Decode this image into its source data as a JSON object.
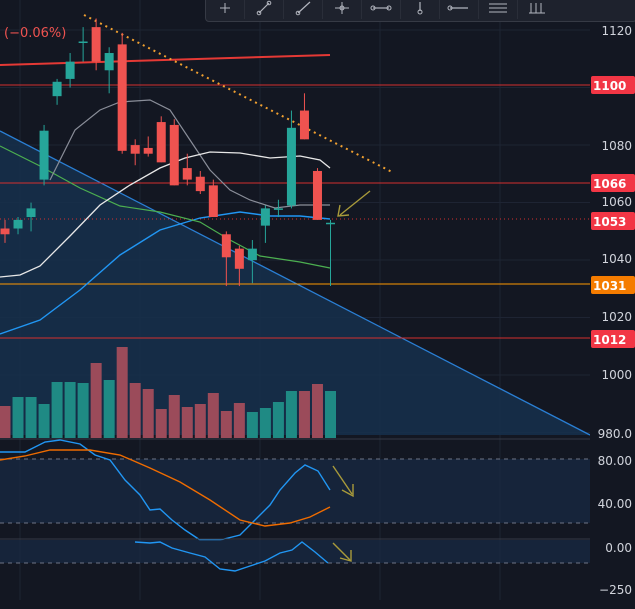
{
  "change_text": "(−0.06%)",
  "toolbar": {
    "tools": [
      "cursor-cross-icon",
      "trend-line-icon",
      "ray-icon",
      "fib-tool-icon",
      "path-icon",
      "brush-icon",
      "horizontal-line-icon",
      "text-icon",
      "pattern-icon"
    ]
  },
  "price_axis": {
    "labels": [
      "1120",
      "1080",
      "1060",
      "1040",
      "1020",
      "1000",
      "980.0"
    ],
    "badges": [
      {
        "text": "1100",
        "bg": "#f23645",
        "fg": "#ffffff"
      },
      {
        "text": "1066",
        "bg": "#f23645",
        "fg": "#ffffff"
      },
      {
        "text": "1053",
        "bg": "#f23645",
        "fg": "#ffffff"
      },
      {
        "text": "1031",
        "bg": "#f57c00",
        "fg": "#ffffff"
      },
      {
        "text": "1012",
        "bg": "#f23645",
        "fg": "#ffffff"
      }
    ]
  },
  "oscillator1": {
    "labels": [
      "80.00",
      "40.00"
    ],
    "levels": [
      80,
      20
    ]
  },
  "oscillator2": {
    "labels": [
      "0.00",
      "−250"
    ]
  },
  "colors": {
    "up": "#26a69a",
    "down": "#ef5350",
    "vol_up": "#1f8a84",
    "vol_down": "#9b4b5a",
    "bg": "#131722",
    "grid": "#1e2433",
    "resistance": "#d32f2f",
    "support_orange": "#ff9800",
    "ma_blue": "#2196f3",
    "ma_white": "#e8e8e8",
    "ma_gray": "#8a8e99",
    "ma_green": "#4caf50",
    "trend_blue": "#2a7fd4",
    "dotted_orange": "#f0a030",
    "arrow_olive": "#a89a3a",
    "osc_blue": "#2196f3",
    "osc_orange": "#ef6c00"
  },
  "chart_data": {
    "type": "candlestick",
    "ylim": [
      978,
      1123
    ],
    "candles": [
      {
        "o": 1051,
        "h": 1054,
        "l": 1046,
        "c": 1049
      },
      {
        "o": 1051,
        "h": 1055,
        "l": 1049,
        "c": 1054
      },
      {
        "o": 1055,
        "h": 1060,
        "l": 1050,
        "c": 1058
      },
      {
        "o": 1068,
        "h": 1087,
        "l": 1066,
        "c": 1085
      },
      {
        "o": 1097,
        "h": 1103,
        "l": 1094,
        "c": 1102
      },
      {
        "o": 1103,
        "h": 1112,
        "l": 1100,
        "c": 1109
      },
      {
        "o": 1116,
        "h": 1121,
        "l": 1109,
        "c": 1116
      },
      {
        "o": 1121,
        "h": 1124,
        "l": 1106,
        "c": 1109
      },
      {
        "o": 1106,
        "h": 1114,
        "l": 1098,
        "c": 1112
      },
      {
        "o": 1115,
        "h": 1119,
        "l": 1077,
        "c": 1078
      },
      {
        "o": 1080,
        "h": 1082,
        "l": 1073,
        "c": 1077
      },
      {
        "o": 1079,
        "h": 1083,
        "l": 1076,
        "c": 1077
      },
      {
        "o": 1088,
        "h": 1090,
        "l": 1074,
        "c": 1074
      },
      {
        "o": 1087,
        "h": 1089,
        "l": 1066,
        "c": 1066
      },
      {
        "o": 1072,
        "h": 1077,
        "l": 1066,
        "c": 1068
      },
      {
        "o": 1069,
        "h": 1071,
        "l": 1063,
        "c": 1064
      },
      {
        "o": 1066,
        "h": 1068,
        "l": 1055,
        "c": 1055
      },
      {
        "o": 1049,
        "h": 1050,
        "l": 1031,
        "c": 1041
      },
      {
        "o": 1044,
        "h": 1045,
        "l": 1031,
        "c": 1037
      },
      {
        "o": 1040,
        "h": 1047,
        "l": 1032,
        "c": 1044
      },
      {
        "o": 1052,
        "h": 1059,
        "l": 1046,
        "c": 1058
      },
      {
        "o": 1058,
        "h": 1061,
        "l": 1055,
        "c": 1058
      },
      {
        "o": 1059,
        "h": 1092,
        "l": 1058,
        "c": 1086
      },
      {
        "o": 1092,
        "h": 1098,
        "l": 1082,
        "c": 1082
      },
      {
        "o": 1071,
        "h": 1072,
        "l": 1054,
        "c": 1054
      },
      {
        "o": 1053,
        "h": 1054,
        "l": 1031,
        "c": 1053
      }
    ],
    "volume": [
      32,
      41,
      41,
      34,
      56,
      56,
      55,
      75,
      58,
      91,
      55,
      49,
      29,
      43,
      31,
      34,
      45,
      27,
      35,
      26,
      30,
      36,
      47,
      47,
      54,
      47
    ]
  }
}
